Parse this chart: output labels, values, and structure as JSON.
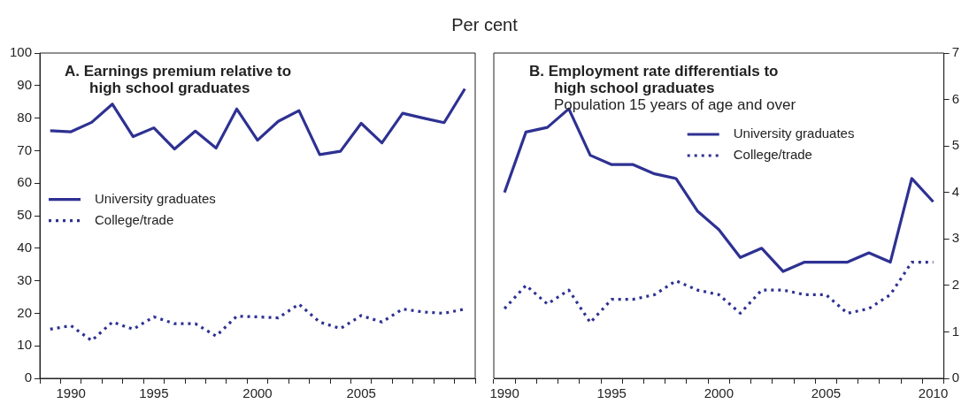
{
  "chart_data": [
    {
      "type": "line",
      "title": "A. Earnings premium relative to\nhigh school graduates",
      "ylabel": "Per cent",
      "categories": [
        null,
        "1990",
        null,
        null,
        null,
        "1995",
        null,
        null,
        null,
        null,
        "2000",
        null,
        null,
        null,
        null,
        "2005",
        null,
        null,
        null,
        null,
        null
      ],
      "series": [
        {
          "name": "University graduates",
          "color": "#2e3192",
          "line_style": "solid",
          "values": [
            76.1,
            75.8,
            78.7,
            84.3,
            74.3,
            77,
            70.5,
            76,
            70.8,
            82.8,
            73.2,
            79,
            82.3,
            68.8,
            69.8,
            78.4,
            72.4,
            81.5,
            80,
            78.6,
            89
          ]
        },
        {
          "name": "College/trade",
          "color": "#2e3192",
          "line_style": "dotted",
          "values": [
            15.1,
            16.2,
            11.6,
            17.3,
            15.1,
            18.9,
            16.8,
            16.8,
            13,
            19.1,
            18.9,
            18.6,
            22.8,
            17.3,
            15.3,
            19.3,
            17.3,
            21.3,
            20.4,
            20,
            21.3
          ]
        }
      ],
      "ylim": [
        0,
        100
      ],
      "yticks": [
        0,
        10,
        20,
        30,
        40,
        50,
        60,
        70,
        80,
        90,
        100
      ],
      "legend": "left"
    },
    {
      "type": "line",
      "title": "B. Employment rate differentials to\nhigh school graduates",
      "subtitle": "Population 15 years of age and over",
      "categories": [
        "1990",
        null,
        null,
        null,
        null,
        "1995",
        null,
        null,
        null,
        null,
        "2000",
        null,
        null,
        null,
        null,
        "2005",
        null,
        null,
        null,
        null,
        "2010"
      ],
      "series": [
        {
          "name": "University graduates",
          "color": "#2e3192",
          "line_style": "solid",
          "axis": "y2",
          "values": [
            4.0,
            5.3,
            5.4,
            5.8,
            4.8,
            4.6,
            4.6,
            4.4,
            4.3,
            3.6,
            3.2,
            2.6,
            2.8,
            2.3,
            2.5,
            2.5,
            2.5,
            2.7,
            2.5,
            4.3,
            3.8
          ]
        },
        {
          "name": "College/trade",
          "color": "#2e3192",
          "line_style": "dotted",
          "axis": "y2",
          "values": [
            1.5,
            2.0,
            1.6,
            1.9,
            1.2,
            1.7,
            1.7,
            1.8,
            2.1,
            1.9,
            1.8,
            1.4,
            1.9,
            1.9,
            1.8,
            1.8,
            1.4,
            1.5,
            1.8,
            2.5,
            2.5
          ]
        }
      ],
      "y2lim": [
        0,
        7
      ],
      "y2ticks": [
        0,
        1,
        2,
        3,
        4,
        5,
        6,
        7
      ],
      "legend": "top right"
    }
  ]
}
